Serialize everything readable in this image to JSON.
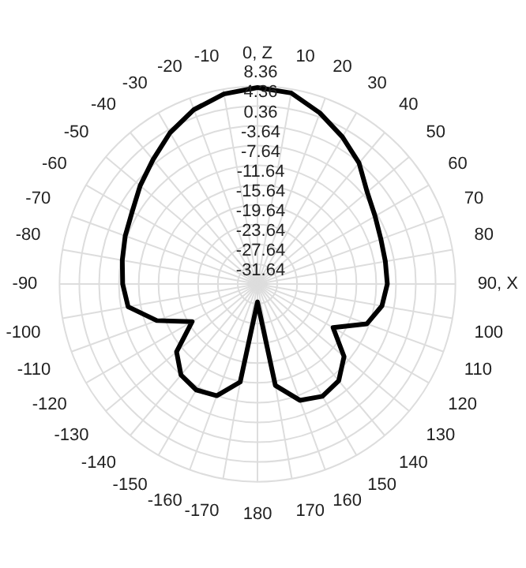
{
  "chart_data": {
    "type": "radar",
    "categories": [
      "0, Z",
      "10",
      "20",
      "30",
      "40",
      "50",
      "60",
      "70",
      "80",
      "90, X",
      "100",
      "110",
      "120",
      "130",
      "140",
      "150",
      "160",
      "170",
      "180",
      "-170",
      "-160",
      "-150",
      "-140",
      "-130",
      "-120",
      "-110",
      "-100",
      "-90",
      "-80",
      "-70",
      "-60",
      "-50",
      "-40",
      "-30",
      "-20",
      "-10"
    ],
    "series": [
      {
        "color": "#000000",
        "values": [
          8.1,
          7.6,
          5.2,
          2.7,
          0.3,
          -2.7,
          -4.2,
          -5.1,
          -5.4,
          -5.4,
          -6.1,
          -8.1,
          -14.0,
          -8.8,
          -6.1,
          -5.4,
          -6.6,
          -10.8,
          -28.0,
          -11.5,
          -7.6,
          -6.9,
          -7.6,
          -10.3,
          -16.4,
          -10.0,
          -5.1,
          -4.4,
          -3.9,
          -3.2,
          -2.4,
          -0.7,
          1.2,
          3.7,
          5.9,
          7.4
        ]
      }
    ],
    "ylim": [
      -31.64,
      8.36
    ],
    "yticks": [
      -31.64,
      -27.64,
      -23.64,
      -19.64,
      -15.64,
      -11.64,
      -7.64,
      -3.64,
      0.36,
      4.36,
      8.36
    ],
    "grid": true,
    "legend": false,
    "marker": "none",
    "line_style": "solid"
  }
}
